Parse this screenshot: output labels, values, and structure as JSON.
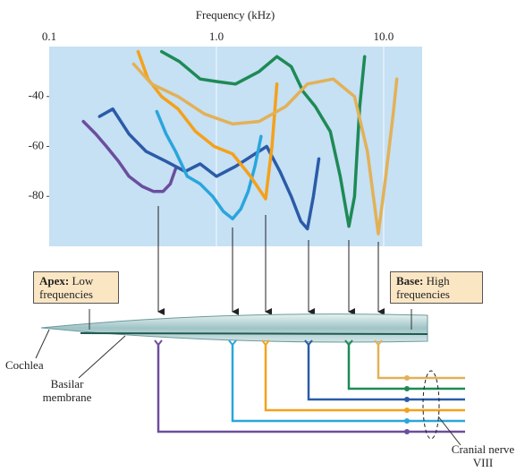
{
  "chart_data": {
    "type": "line",
    "title": "Frequency (kHz)",
    "xscale": "log",
    "grid": "x",
    "xlim": [
      0.1,
      17
    ],
    "xticks": [
      0.1,
      {
        "value": 1,
        "label": "1.0"
      },
      {
        "value": 10,
        "label": "10.0"
      }
    ],
    "ylim": [
      -100,
      -20
    ],
    "yticks": [
      -40,
      -60,
      -80
    ],
    "series": [
      {
        "color": "#6b4e9e",
        "x": [
          0.16,
          0.19,
          0.22,
          0.26,
          0.3,
          0.36,
          0.42,
          0.48,
          0.53,
          0.57
        ],
        "values": [
          -50,
          -55,
          -60,
          -66,
          -72,
          -76,
          -78,
          -78,
          -75,
          -69
        ]
      },
      {
        "color": "#2b5ba8",
        "x": [
          0.2,
          0.24,
          0.3,
          0.38,
          0.5,
          0.65,
          0.8,
          1.0,
          1.3,
          1.7,
          2.0,
          2.4,
          2.8,
          3.2,
          3.5,
          3.8,
          4.1
        ],
        "values": [
          -48,
          -45,
          -55,
          -62,
          -66,
          -70,
          -67,
          -72,
          -68,
          -63,
          -60,
          -70,
          -80,
          -90,
          -93,
          -80,
          -65
        ]
      },
      {
        "color": "#29a6dc",
        "x": [
          0.44,
          0.5,
          0.57,
          0.67,
          0.8,
          0.95,
          1.1,
          1.25,
          1.4,
          1.55,
          1.7,
          1.85
        ],
        "values": [
          -46,
          -55,
          -62,
          -72,
          -75,
          -80,
          -86,
          -89,
          -85,
          -78,
          -68,
          -56
        ]
      },
      {
        "color": "#f4a11a",
        "x": [
          0.34,
          0.39,
          0.47,
          0.59,
          0.75,
          0.97,
          1.25,
          1.6,
          1.97,
          2.15,
          2.3
        ],
        "values": [
          -22,
          -33,
          -40,
          -45,
          -54,
          -60,
          -63,
          -72,
          -81,
          -60,
          -35
        ]
      },
      {
        "color": "#1d8a55",
        "x": [
          0.47,
          0.6,
          0.8,
          1.0,
          1.3,
          1.8,
          2.3,
          2.8,
          3.3,
          3.9,
          4.8,
          5.5,
          6.2,
          6.7,
          7.2,
          7.7
        ],
        "values": [
          -22,
          -26,
          -33,
          -34,
          -35,
          -30,
          -24,
          -28,
          -38,
          -44,
          -54,
          -72,
          -92,
          -80,
          -44,
          -24
        ]
      },
      {
        "color": "#e2b157",
        "x": [
          0.32,
          0.41,
          0.59,
          0.85,
          1.25,
          1.8,
          2.6,
          3.5,
          5,
          6.7,
          8,
          9.3,
          10.3,
          11.4,
          12
        ],
        "values": [
          -27,
          -35,
          -40,
          -47,
          -51,
          -50,
          -44,
          -35,
          -33,
          -40,
          -62,
          -95,
          -72,
          -47,
          -33
        ]
      }
    ]
  },
  "labels": {
    "apex": {
      "title": "Apex:",
      "text": "Low frequencies"
    },
    "base": {
      "title": "Base:",
      "text": "High frequencies"
    },
    "cochlea": "Cochlea",
    "basilar": "Basilar membrane",
    "nerve": "Cranial nerve VIII"
  }
}
